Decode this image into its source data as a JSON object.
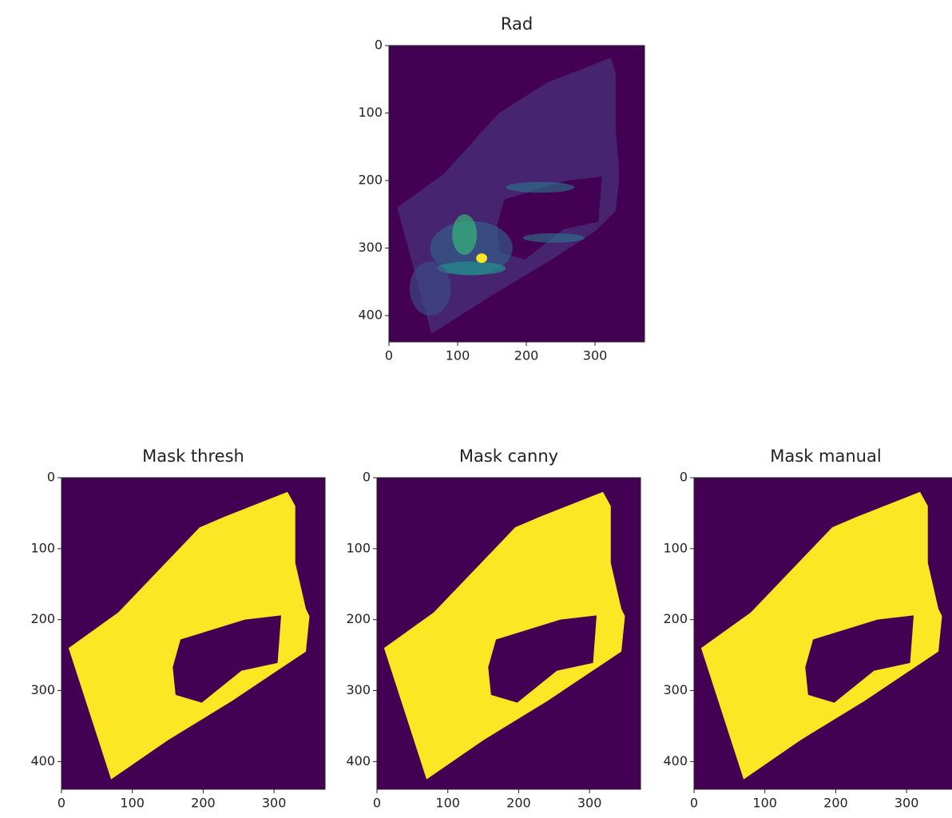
{
  "chart_data": [
    {
      "type": "image",
      "title": "Rad",
      "xlim": [
        0,
        372
      ],
      "ylim": [
        439,
        0
      ],
      "xticks": [
        0,
        100,
        200,
        300
      ],
      "yticks": [
        0,
        100,
        200,
        300,
        400
      ]
    },
    {
      "type": "image",
      "title": "Mask thresh",
      "xlim": [
        0,
        372
      ],
      "ylim": [
        439,
        0
      ],
      "xticks": [
        0,
        100,
        200,
        300
      ],
      "yticks": [
        0,
        100,
        200,
        300,
        400
      ]
    },
    {
      "type": "image",
      "title": "Mask canny",
      "xlim": [
        0,
        372
      ],
      "ylim": [
        439,
        0
      ],
      "xticks": [
        0,
        100,
        200,
        300
      ],
      "yticks": [
        0,
        100,
        200,
        300,
        400
      ]
    },
    {
      "type": "image",
      "title": "Mask manual",
      "xlim": [
        0,
        372
      ],
      "ylim": [
        439,
        0
      ],
      "xticks": [
        0,
        100,
        200,
        300
      ],
      "yticks": [
        0,
        100,
        200,
        300,
        400
      ]
    }
  ]
}
